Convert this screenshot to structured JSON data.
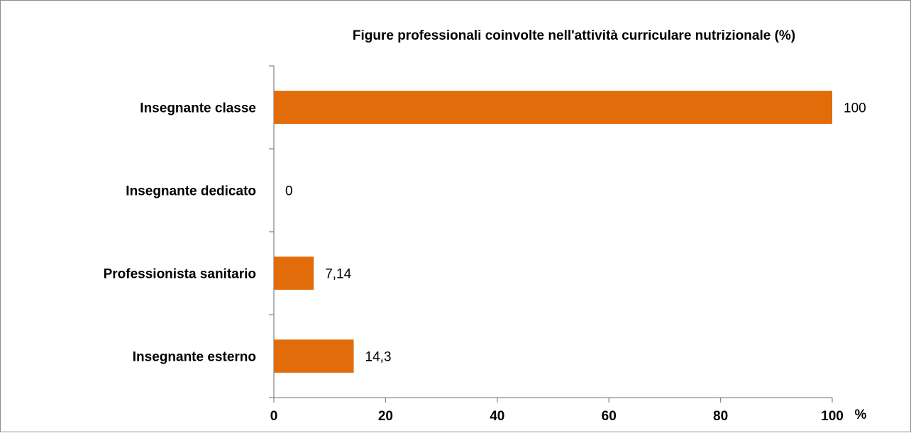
{
  "chart_data": {
    "type": "bar",
    "orientation": "horizontal",
    "title": "Figure professionali coinvolte nell'attività curriculare nutrizionale (%)",
    "categories": [
      "Insegnante classe",
      "Insegnante dedicato",
      "Professionista sanitario",
      "Insegnante esterno"
    ],
    "values": [
      100,
      0,
      7.14,
      14.3
    ],
    "value_labels": [
      "100",
      "0",
      "7,14",
      "14,3"
    ],
    "xlim": [
      0,
      100
    ],
    "x_ticks": [
      0,
      20,
      40,
      60,
      80,
      100
    ],
    "x_tick_labels": [
      "0",
      "20",
      "40",
      "60",
      "80",
      "100"
    ],
    "x_unit_label": "%",
    "grid": false,
    "legend": "none",
    "bar_color": "#e36c0a",
    "axis_color": "#8c8c8c"
  }
}
